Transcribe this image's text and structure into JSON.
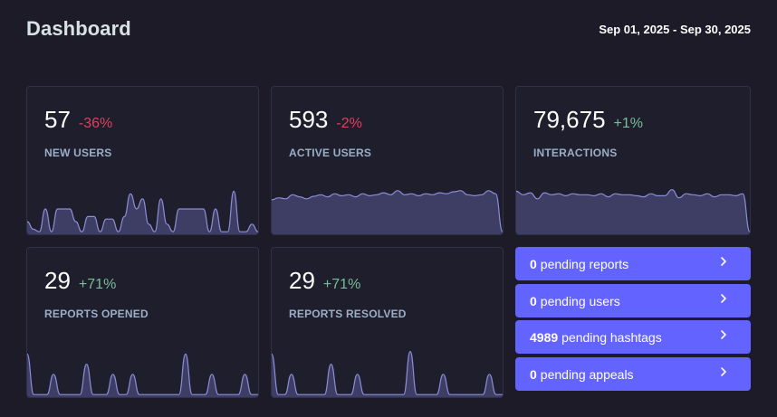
{
  "header": {
    "title": "Dashboard",
    "date_range": "Sep 01, 2025 - Sep 30, 2025"
  },
  "colors": {
    "accent": "#6364ff",
    "negative": "#df405a",
    "positive": "#79bd9a",
    "sparkline_fill": "#3e3d63",
    "sparkline_stroke": "#8b8dd8"
  },
  "metrics": [
    {
      "value": "57",
      "delta": "-36%",
      "trend": "negative",
      "label": "NEW USERS",
      "spark": [
        0.25,
        0.1,
        0.05,
        0.5,
        0.05,
        0.5,
        0.5,
        0.5,
        0.25,
        0.05,
        0.35,
        0.35,
        0.05,
        0.3,
        0.3,
        0.05,
        0.35,
        0.8,
        0.5,
        0.7,
        0.2,
        0.05,
        0.7,
        0.2,
        0.05,
        0.5,
        0.5,
        0.5,
        0.5,
        0.5,
        0.05,
        0.5,
        0.05,
        0.05,
        0.85,
        0.05,
        0.05,
        0.2,
        0.05
      ]
    },
    {
      "value": "593",
      "delta": "-2%",
      "trend": "negative",
      "label": "ACTIVE USERS",
      "spark": [
        0.68,
        0.72,
        0.7,
        0.78,
        0.74,
        0.7,
        0.75,
        0.78,
        0.74,
        0.8,
        0.76,
        0.78,
        0.74,
        0.8,
        0.76,
        0.78,
        0.82,
        0.78,
        0.86,
        0.78,
        0.8,
        0.76,
        0.8,
        0.78,
        0.82,
        0.8,
        0.84,
        0.86,
        0.78,
        0.76,
        0.78,
        0.86,
        0.8,
        0.05
      ]
    },
    {
      "value": "79,675",
      "delta": "+1%",
      "trend": "positive",
      "label": "INTERACTIONS",
      "spark": [
        0.85,
        0.78,
        0.82,
        0.7,
        0.82,
        0.78,
        0.8,
        0.76,
        0.8,
        0.78,
        0.78,
        0.76,
        0.8,
        0.74,
        0.8,
        0.78,
        0.78,
        0.76,
        0.74,
        0.8,
        0.76,
        0.76,
        0.88,
        0.72,
        0.8,
        0.78,
        0.76,
        0.8,
        0.74,
        0.78,
        0.78,
        0.76,
        0.8,
        0.05
      ]
    },
    {
      "value": "29",
      "delta": "+71%",
      "trend": "positive",
      "label": "REPORTS OPENED",
      "spark": [
        0.85,
        0.05,
        0.05,
        0.05,
        0.45,
        0.05,
        0.05,
        0.05,
        0.05,
        0.65,
        0.05,
        0.05,
        0.05,
        0.45,
        0.05,
        0.05,
        0.45,
        0.05,
        0.05,
        0.05,
        0.05,
        0.05,
        0.05,
        0.05,
        0.85,
        0.05,
        0.05,
        0.05,
        0.45,
        0.05,
        0.05,
        0.05,
        0.05,
        0.45,
        0.05,
        0.05
      ]
    },
    {
      "value": "29",
      "delta": "+71%",
      "trend": "positive",
      "label": "REPORTS RESOLVED",
      "spark": [
        0.85,
        0.05,
        0.05,
        0.45,
        0.05,
        0.05,
        0.05,
        0.05,
        0.05,
        0.65,
        0.05,
        0.05,
        0.05,
        0.45,
        0.05,
        0.05,
        0.05,
        0.05,
        0.05,
        0.05,
        0.05,
        0.9,
        0.05,
        0.05,
        0.05,
        0.05,
        0.45,
        0.05,
        0.05,
        0.05,
        0.05,
        0.05,
        0.05,
        0.45,
        0.05,
        0.05
      ]
    }
  ],
  "actions": [
    {
      "count": "0",
      "text": "pending reports",
      "icon": "chevron-right-icon"
    },
    {
      "count": "0",
      "text": "pending users",
      "icon": "chevron-right-icon"
    },
    {
      "count": "4989",
      "text": "pending hashtags",
      "icon": "chevron-right-icon"
    },
    {
      "count": "0",
      "text": "pending appeals",
      "icon": "chevron-right-icon"
    }
  ]
}
